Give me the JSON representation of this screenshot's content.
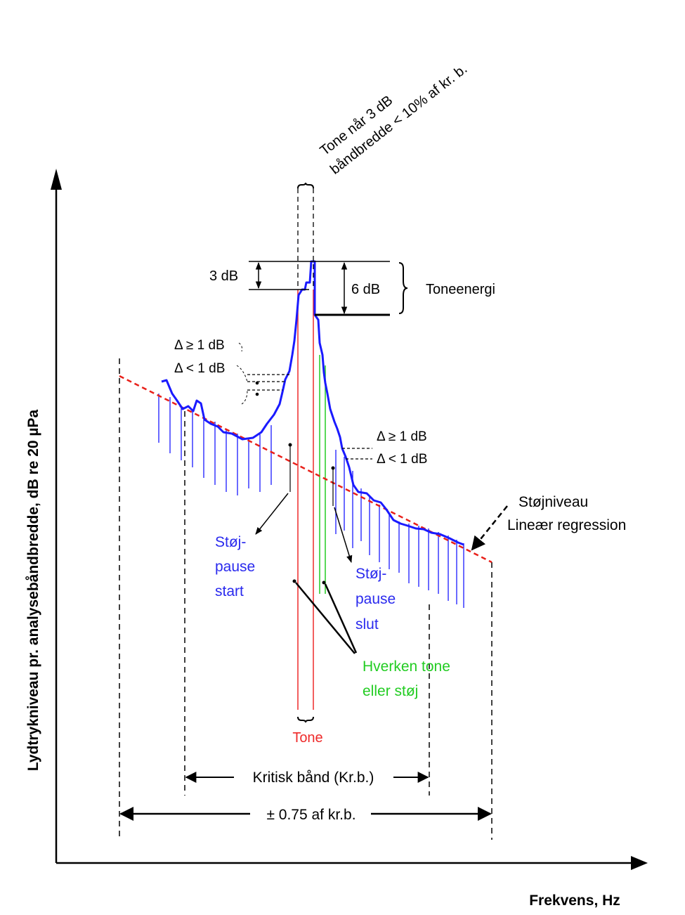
{
  "axes": {
    "y_label": "Lydtrykniveau pr. analysebåndbredde, dB re 20 µPa",
    "x_label": "Frekvens, Hz"
  },
  "annotations": {
    "tone_note_line1": "Tone når 3 dB",
    "tone_note_line2": "båndbredde < 10% af kr. b.",
    "db3": "3 dB",
    "db6": "6 dB",
    "toneenergi": "Toneenergi",
    "left_delta_ge": "Δ ≥ 1 dB",
    "left_delta_lt": "Δ < 1 dB",
    "right_delta_ge": "Δ ≥ 1 dB",
    "right_delta_lt": "Δ < 1 dB",
    "stoejniveau_1": "Støjniveau",
    "stoejniveau_2": "Lineær regression",
    "pause_start": [
      "Støj-",
      "pause",
      "start"
    ],
    "pause_slut": [
      "Støj-",
      "pause",
      "slut"
    ],
    "hverken": [
      "Hverken tone",
      "eller støj"
    ],
    "tone": "Tone",
    "kritisk_band": "Kritisk bånd (Kr.b.)",
    "plusminus": "± 0.75 af kr.b."
  },
  "colors": {
    "spectrum": "#1a1aff",
    "regression": "#e8201a",
    "tone": "#ee2a2a",
    "neither": "#22cc22",
    "text_blue": "#2a2aee",
    "text_green": "#22cc22",
    "text_red": "#ee2a2a",
    "axis": "#000000"
  }
}
